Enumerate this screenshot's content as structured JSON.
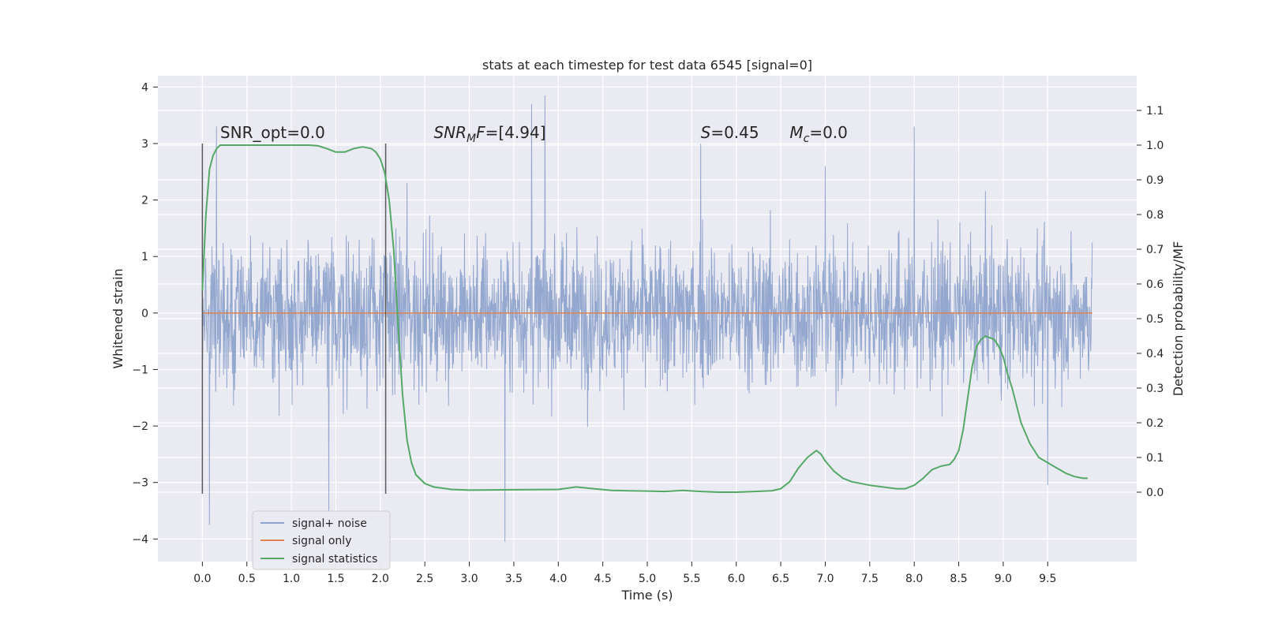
{
  "chart_data": {
    "type": "line",
    "title": "stats at each timestep for test data 6545 [signal=0]",
    "xlabel": "Time (s)",
    "ylabel_left": "Whitened strain",
    "ylabel_right": "Detection probability/MF",
    "xlim": [
      -0.5,
      10.5
    ],
    "ylim_left": [
      -4.4,
      4.2
    ],
    "ylim_right": [
      -0.2,
      1.2
    ],
    "xticks": [
      0.0,
      0.5,
      1.0,
      1.5,
      2.0,
      2.5,
      3.0,
      3.5,
      4.0,
      4.5,
      5.0,
      5.5,
      6.0,
      6.5,
      7.0,
      7.5,
      8.0,
      8.5,
      9.0,
      9.5
    ],
    "xtick_labels": [
      "0.0",
      "0.5",
      "1.0",
      "1.5",
      "2.0",
      "2.5",
      "3.0",
      "3.5",
      "4.0",
      "4.5",
      "5.0",
      "5.5",
      "6.0",
      "6.5",
      "7.0",
      "7.5",
      "8.0",
      "8.5",
      "9.0",
      "9.5"
    ],
    "yticks_left": [
      -4,
      -3,
      -2,
      -1,
      0,
      1,
      2,
      3,
      4
    ],
    "ytick_labels_left": [
      "−4",
      "−3",
      "−2",
      "−1",
      "0",
      "1",
      "2",
      "3",
      "4"
    ],
    "yticks_right": [
      0.0,
      0.1,
      0.2,
      0.3,
      0.4,
      0.5,
      0.6,
      0.7,
      0.8,
      0.9,
      1.0,
      1.1
    ],
    "ytick_labels_right": [
      "0.0",
      "0.1",
      "0.2",
      "0.3",
      "0.4",
      "0.5",
      "0.6",
      "0.7",
      "0.8",
      "0.9",
      "1.0",
      "1.1"
    ],
    "grid": true,
    "legend_placement": "lower-left",
    "series": [
      {
        "name": "signal+ noise",
        "axis": "left",
        "color": "#8fa3cc",
        "x_range": [
          0.0,
          10.0
        ],
        "typical_amplitude": 1.15,
        "extremes": [
          {
            "x": 0.08,
            "y": -3.75
          },
          {
            "x": 0.16,
            "y": 3.3
          },
          {
            "x": 1.42,
            "y": -3.5
          },
          {
            "x": 2.3,
            "y": 2.3
          },
          {
            "x": 3.4,
            "y": -4.05
          },
          {
            "x": 3.7,
            "y": 3.7
          },
          {
            "x": 3.85,
            "y": 3.85
          },
          {
            "x": 5.6,
            "y": 3.0
          },
          {
            "x": 7.0,
            "y": 2.6
          },
          {
            "x": 8.0,
            "y": 3.3
          },
          {
            "x": 9.5,
            "y": -3.05
          }
        ]
      },
      {
        "name": "signal only",
        "axis": "left",
        "color": "#dd8452",
        "x": [
          0.0,
          10.0
        ],
        "y": [
          0.0,
          0.0
        ]
      },
      {
        "name": "signal statistics",
        "axis": "right",
        "color": "#55a868",
        "x": [
          0.0,
          0.04,
          0.08,
          0.12,
          0.16,
          0.2,
          0.3,
          0.5,
          0.7,
          1.0,
          1.2,
          1.3,
          1.4,
          1.5,
          1.6,
          1.7,
          1.8,
          1.9,
          1.95,
          2.0,
          2.05,
          2.1,
          2.15,
          2.2,
          2.25,
          2.3,
          2.35,
          2.4,
          2.5,
          2.6,
          2.8,
          3.0,
          3.5,
          4.0,
          4.2,
          4.4,
          4.6,
          4.8,
          5.0,
          5.2,
          5.4,
          5.6,
          5.8,
          6.0,
          6.2,
          6.4,
          6.5,
          6.6,
          6.7,
          6.8,
          6.9,
          6.95,
          7.0,
          7.1,
          7.2,
          7.3,
          7.5,
          7.8,
          7.9,
          8.0,
          8.1,
          8.2,
          8.3,
          8.4,
          8.45,
          8.5,
          8.55,
          8.6,
          8.65,
          8.7,
          8.75,
          8.8,
          8.9,
          8.95,
          9.0,
          9.05,
          9.1,
          9.15,
          9.2,
          9.3,
          9.4,
          9.5,
          9.6,
          9.7,
          9.8,
          9.9,
          9.95
        ],
        "y": [
          0.58,
          0.8,
          0.93,
          0.97,
          0.99,
          1.0,
          1.0,
          1.0,
          1.0,
          1.0,
          1.0,
          0.998,
          0.99,
          0.98,
          0.98,
          0.99,
          0.995,
          0.99,
          0.98,
          0.96,
          0.92,
          0.84,
          0.7,
          0.48,
          0.28,
          0.15,
          0.085,
          0.05,
          0.025,
          0.015,
          0.008,
          0.006,
          0.007,
          0.008,
          0.015,
          0.01,
          0.005,
          0.004,
          0.003,
          0.002,
          0.005,
          0.002,
          0.0,
          0.0,
          0.002,
          0.004,
          0.01,
          0.03,
          0.07,
          0.1,
          0.12,
          0.11,
          0.09,
          0.06,
          0.04,
          0.03,
          0.02,
          0.01,
          0.01,
          0.02,
          0.04,
          0.065,
          0.075,
          0.08,
          0.095,
          0.12,
          0.18,
          0.27,
          0.36,
          0.42,
          0.44,
          0.45,
          0.44,
          0.42,
          0.39,
          0.34,
          0.3,
          0.25,
          0.2,
          0.14,
          0.1,
          0.085,
          0.07,
          0.055,
          0.045,
          0.04,
          0.04
        ]
      }
    ],
    "markers": [
      {
        "x": 0.0,
        "y_left": [
          -3.2,
          3.0
        ],
        "color": "#5a5a5a"
      },
      {
        "x": 2.06,
        "y_left": [
          -3.2,
          3.0
        ],
        "color": "#5a5a5a"
      }
    ],
    "annotations": [
      {
        "x": 0.2,
        "y_left": 3.1,
        "base": "SNR_opt",
        "italic": false,
        "sub": "",
        "value": "=0.0"
      },
      {
        "x": 2.6,
        "y_left": 3.1,
        "base": "SNR",
        "italic": true,
        "sub": "M",
        "tail": "F",
        "value": "=[4.94]"
      },
      {
        "x": 5.6,
        "y_left": 3.1,
        "base": "S",
        "italic": true,
        "sub": "",
        "value": "=0.45"
      },
      {
        "x": 6.6,
        "y_left": 3.1,
        "base": "M",
        "italic": true,
        "sub": "c",
        "value": "=0.0"
      }
    ]
  }
}
